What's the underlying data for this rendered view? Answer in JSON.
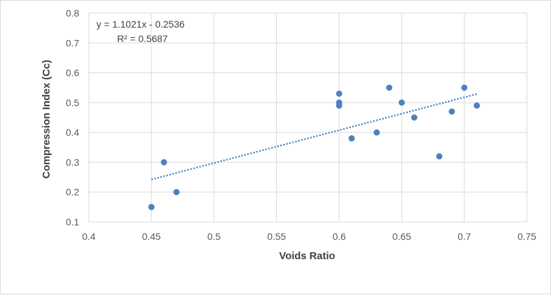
{
  "chart_data": {
    "type": "scatter",
    "xlabel": "Voids Ratio",
    "ylabel": "Compression Index (Cc)",
    "xlim": [
      0.4,
      0.75
    ],
    "ylim": [
      0.1,
      0.8
    ],
    "x_ticks": [
      "0.4",
      "0.45",
      "0.5",
      "0.55",
      "0.6",
      "0.65",
      "0.7",
      "0.75"
    ],
    "y_ticks": [
      "0.1",
      "0.2",
      "0.3",
      "0.4",
      "0.5",
      "0.6",
      "0.7",
      "0.8"
    ],
    "grid": "major gridlines on both axes",
    "series": [
      {
        "points": [
          {
            "x": 0.45,
            "y": 0.15
          },
          {
            "x": 0.46,
            "y": 0.3
          },
          {
            "x": 0.47,
            "y": 0.2
          },
          {
            "x": 0.6,
            "y": 0.53
          },
          {
            "x": 0.6,
            "y": 0.5
          },
          {
            "x": 0.6,
            "y": 0.49
          },
          {
            "x": 0.61,
            "y": 0.38
          },
          {
            "x": 0.63,
            "y": 0.4
          },
          {
            "x": 0.64,
            "y": 0.55
          },
          {
            "x": 0.65,
            "y": 0.5
          },
          {
            "x": 0.66,
            "y": 0.45
          },
          {
            "x": 0.68,
            "y": 0.32
          },
          {
            "x": 0.69,
            "y": 0.47
          },
          {
            "x": 0.7,
            "y": 0.55
          },
          {
            "x": 0.71,
            "y": 0.49
          }
        ],
        "color": "#4f81bd"
      }
    ],
    "trendline": {
      "style": "dotted",
      "color": "#2e75b6",
      "slope": 1.1021,
      "intercept": -0.2536,
      "x_range": [
        0.45,
        0.71
      ],
      "equation_label": "y = 1.1021x - 0.2536",
      "r2_label": "R² = 0.5687"
    }
  }
}
